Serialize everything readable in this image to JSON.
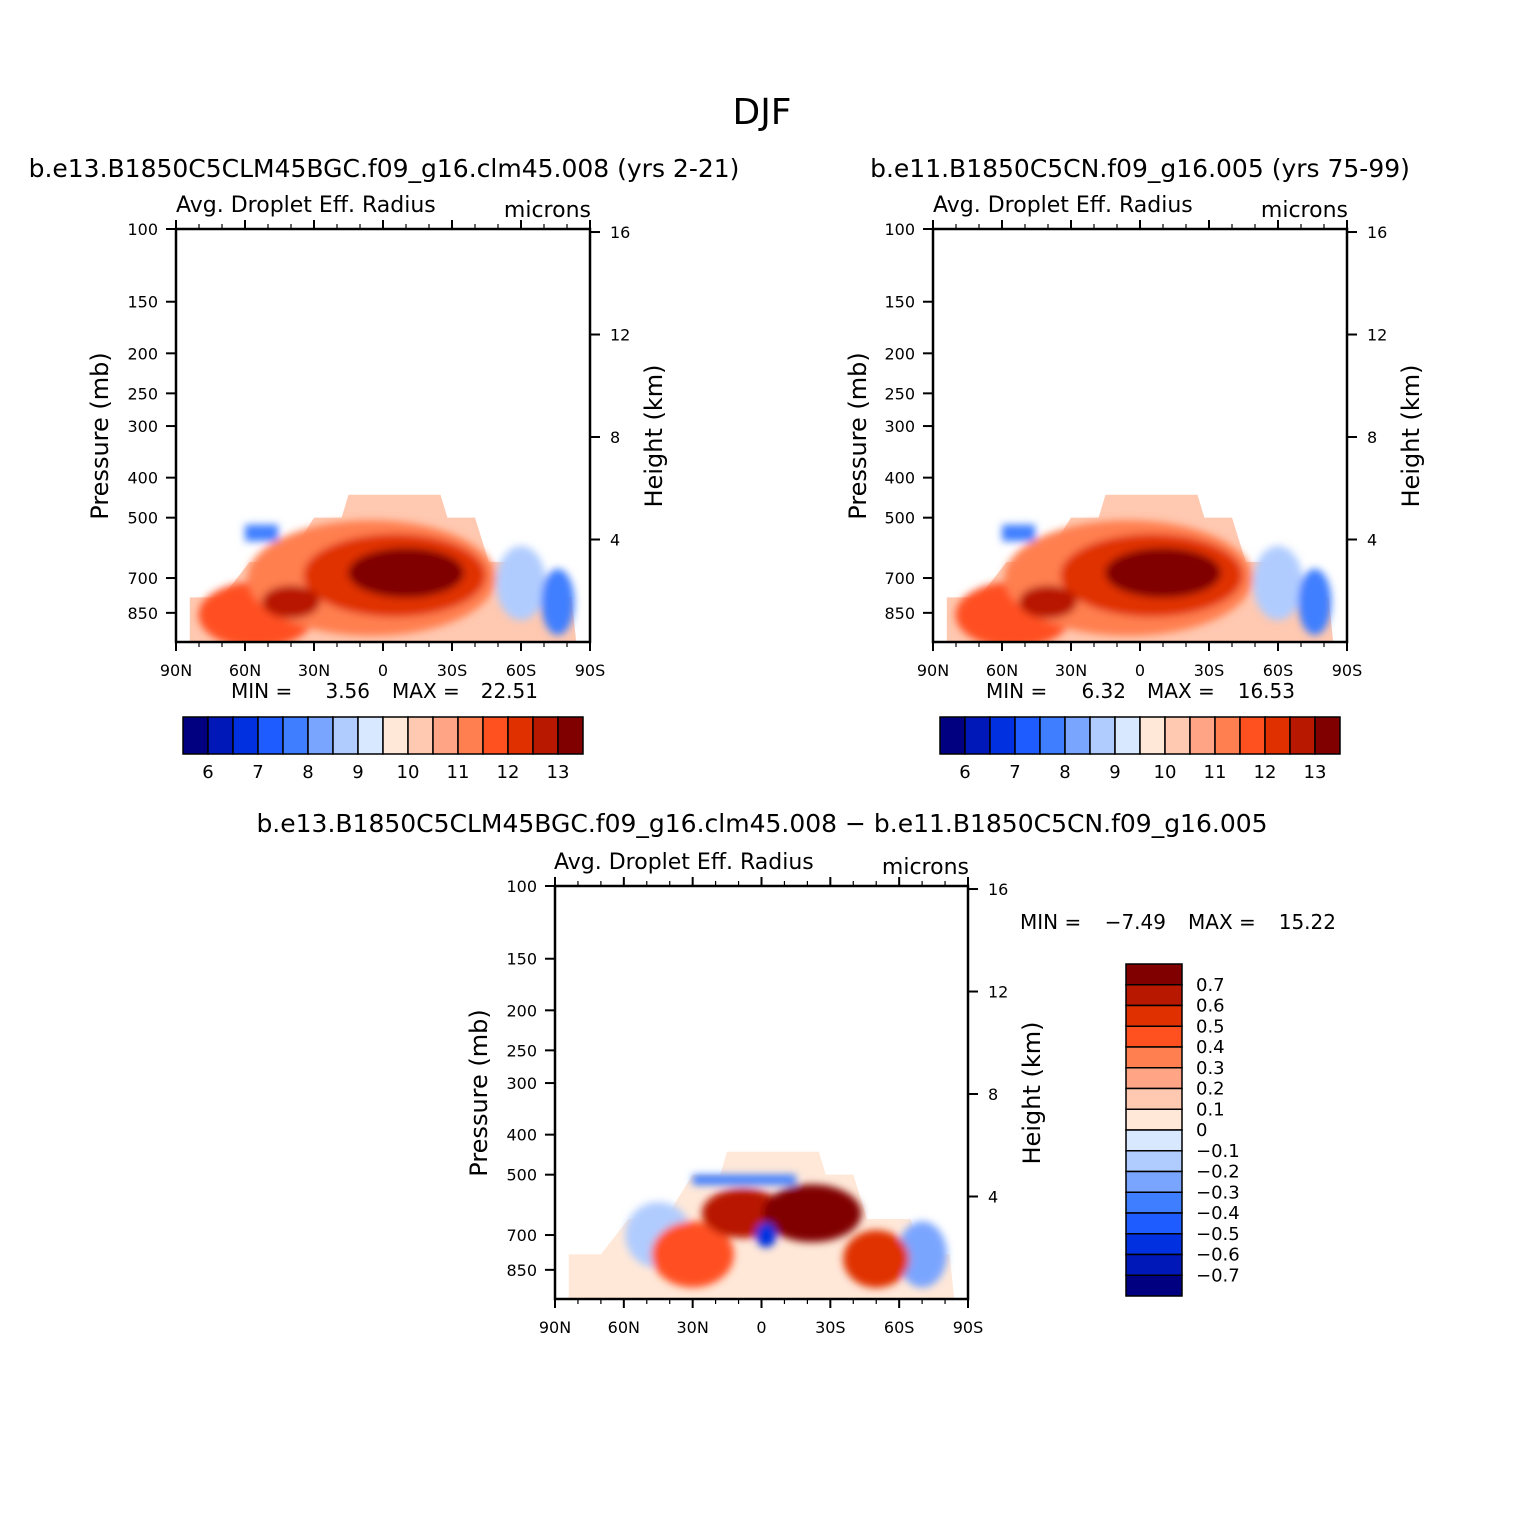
{
  "figure": {
    "title": "DJF"
  },
  "colors": {
    "abs_scale": [
      "#000080",
      "#0018b8",
      "#0030e0",
      "#1f5cff",
      "#3f7fff",
      "#7aa5ff",
      "#b0ccff",
      "#d8e8ff",
      "#ffe8d8",
      "#ffc8b0",
      "#ffa585",
      "#ff7f50",
      "#ff5020",
      "#e03000",
      "#b81800",
      "#800000"
    ],
    "diff_scale": [
      "#800000",
      "#b81800",
      "#e03000",
      "#ff5020",
      "#ff7f50",
      "#ffa585",
      "#ffc8b0",
      "#ffe8d8",
      "#d8e8ff",
      "#b0ccff",
      "#7aa5ff",
      "#3f7fff",
      "#1f5cff",
      "#0030e0",
      "#0018b8",
      "#000080"
    ]
  },
  "chart_data": [
    {
      "type": "heatmap",
      "title": "b.e13.B1850C5CLM45BGC.f09_g16.clm45.008 (yrs 2-21)",
      "left_title": "Avg. Droplet Eff. Radius",
      "right_title": "microns",
      "xlabel": "",
      "ylabel": "Pressure (mb)",
      "ylabel_right": "Height (km)",
      "x_ticks": [
        "90N",
        "60N",
        "30N",
        "0",
        "30S",
        "60S",
        "90S"
      ],
      "y_ticks": [
        "100",
        "150",
        "200",
        "250",
        "300",
        "400",
        "500",
        "700",
        "850"
      ],
      "y_ticks_right": [
        "16",
        "12",
        "8",
        "4"
      ],
      "min_label": "MIN =",
      "min_value": "3.56",
      "max_label": "MAX =",
      "max_value": "22.51",
      "colorbar_labels": [
        "6",
        "7",
        "8",
        "9",
        "10",
        "11",
        "12",
        "13"
      ],
      "xlim": [
        90,
        -90
      ],
      "ylim": [
        1000,
        100
      ]
    },
    {
      "type": "heatmap",
      "title": "b.e11.B1850C5CN.f09_g16.005 (yrs 75-99)",
      "left_title": "Avg. Droplet Eff. Radius",
      "right_title": "microns",
      "xlabel": "",
      "ylabel": "Pressure (mb)",
      "ylabel_right": "Height (km)",
      "x_ticks": [
        "90N",
        "60N",
        "30N",
        "0",
        "30S",
        "60S",
        "90S"
      ],
      "y_ticks": [
        "100",
        "150",
        "200",
        "250",
        "300",
        "400",
        "500",
        "700",
        "850"
      ],
      "y_ticks_right": [
        "16",
        "12",
        "8",
        "4"
      ],
      "min_label": "MIN =",
      "min_value": "6.32",
      "max_label": "MAX =",
      "max_value": "16.53",
      "colorbar_labels": [
        "6",
        "7",
        "8",
        "9",
        "10",
        "11",
        "12",
        "13"
      ],
      "xlim": [
        90,
        -90
      ],
      "ylim": [
        1000,
        100
      ]
    },
    {
      "type": "heatmap",
      "title": "b.e13.B1850C5CLM45BGC.f09_g16.clm45.008 − b.e11.B1850C5CN.f09_g16.005",
      "left_title": "Avg. Droplet Eff. Radius",
      "right_title": "microns",
      "xlabel": "",
      "ylabel": "Pressure (mb)",
      "ylabel_right": "Height (km)",
      "x_ticks": [
        "90N",
        "60N",
        "30N",
        "0",
        "30S",
        "60S",
        "90S"
      ],
      "y_ticks": [
        "100",
        "150",
        "200",
        "250",
        "300",
        "400",
        "500",
        "700",
        "850"
      ],
      "y_ticks_right": [
        "16",
        "12",
        "8",
        "4"
      ],
      "min_label": "MIN =",
      "min_value": "−7.49",
      "max_label": "MAX =",
      "max_value": "15.22",
      "colorbar_labels": [
        "0.7",
        "0.6",
        "0.5",
        "0.4",
        "0.3",
        "0.2",
        "0.1",
        "0",
        "−0.1",
        "−0.2",
        "−0.3",
        "−0.4",
        "−0.5",
        "−0.6",
        "−0.7"
      ],
      "xlim": [
        90,
        -90
      ],
      "ylim": [
        1000,
        100
      ]
    }
  ]
}
